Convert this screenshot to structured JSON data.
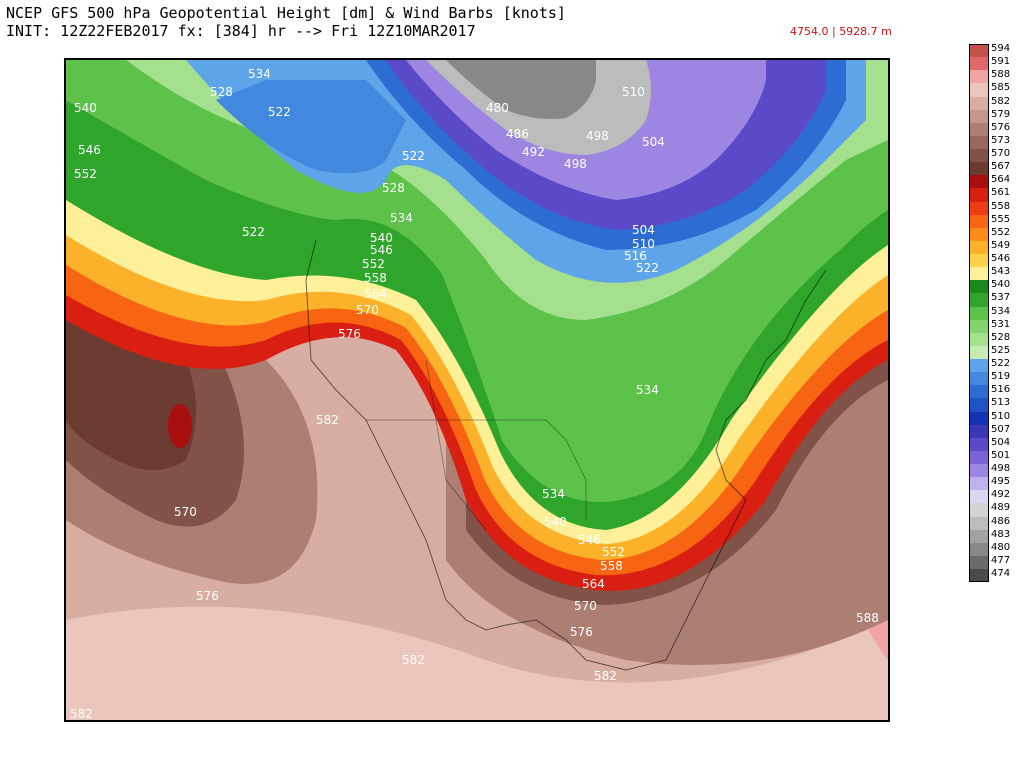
{
  "header": {
    "line1": "NCEP GFS 500 hPa Geopotential Height [dm] & Wind Barbs [knots]",
    "line2": "INIT: 12Z22FEB2017 fx: [384] hr --> Fri 12Z10MAR2017",
    "range": "4754.0 | 5928.7 m"
  },
  "colorbar": [
    {
      "label": "594",
      "color": "#c4504c"
    },
    {
      "label": "591",
      "color": "#e0686a"
    },
    {
      "label": "588",
      "color": "#f1a4a6"
    },
    {
      "label": "585",
      "color": "#ebc6bd"
    },
    {
      "label": "582",
      "color": "#d7aea1"
    },
    {
      "label": "579",
      "color": "#c4978a"
    },
    {
      "label": "576",
      "color": "#ad7f72"
    },
    {
      "label": "573",
      "color": "#98685c"
    },
    {
      "label": "570",
      "color": "#815247"
    },
    {
      "label": "567",
      "color": "#6b3a31"
    },
    {
      "label": "564",
      "color": "#a80e0e"
    },
    {
      "label": "561",
      "color": "#d81f12"
    },
    {
      "label": "558",
      "color": "#f03c12"
    },
    {
      "label": "555",
      "color": "#f76412"
    },
    {
      "label": "552",
      "color": "#fb8c18"
    },
    {
      "label": "549",
      "color": "#fcb12a"
    },
    {
      "label": "546",
      "color": "#fdd24a"
    },
    {
      "label": "543",
      "color": "#fdf099"
    },
    {
      "label": "540",
      "color": "#168a1c"
    },
    {
      "label": "537",
      "color": "#2fa62b"
    },
    {
      "label": "534",
      "color": "#5cc24a"
    },
    {
      "label": "531",
      "color": "#82d46c"
    },
    {
      "label": "528",
      "color": "#a4e08e"
    },
    {
      "label": "525",
      "color": "#c6ecb4"
    },
    {
      "label": "522",
      "color": "#5ea4e8"
    },
    {
      "label": "519",
      "color": "#4288de"
    },
    {
      "label": "516",
      "color": "#2d6cd2"
    },
    {
      "label": "513",
      "color": "#1f52c4"
    },
    {
      "label": "510",
      "color": "#1432b2"
    },
    {
      "label": "507",
      "color": "#3a36b8"
    },
    {
      "label": "504",
      "color": "#5b4ac8"
    },
    {
      "label": "501",
      "color": "#7c62d6"
    },
    {
      "label": "498",
      "color": "#9d86e2"
    },
    {
      "label": "495",
      "color": "#c0b0ee"
    },
    {
      "label": "492",
      "color": "#dcd8f4"
    },
    {
      "label": "489",
      "color": "#d4d4d4"
    },
    {
      "label": "486",
      "color": "#bcbcbc"
    },
    {
      "label": "483",
      "color": "#a2a2a2"
    },
    {
      "label": "480",
      "color": "#888888"
    },
    {
      "label": "477",
      "color": "#6a6a6a"
    },
    {
      "label": "474",
      "color": "#4a4a4a"
    }
  ],
  "contour_labels": [
    {
      "text": "534"
    },
    {
      "text": "528"
    },
    {
      "text": "522"
    },
    {
      "text": "540"
    },
    {
      "text": "546"
    },
    {
      "text": "552"
    },
    {
      "text": "522"
    },
    {
      "text": "522"
    },
    {
      "text": "528"
    },
    {
      "text": "534"
    },
    {
      "text": "540"
    },
    {
      "text": "546"
    },
    {
      "text": "552"
    },
    {
      "text": "558"
    },
    {
      "text": "564"
    },
    {
      "text": "570"
    },
    {
      "text": "576"
    },
    {
      "text": "582"
    },
    {
      "text": "480"
    },
    {
      "text": "486"
    },
    {
      "text": "492"
    },
    {
      "text": "498"
    },
    {
      "text": "498"
    },
    {
      "text": "510"
    },
    {
      "text": "504"
    },
    {
      "text": "504"
    },
    {
      "text": "510"
    },
    {
      "text": "516"
    },
    {
      "text": "522"
    },
    {
      "text": "534"
    },
    {
      "text": "534"
    },
    {
      "text": "540"
    },
    {
      "text": "546"
    },
    {
      "text": "552"
    },
    {
      "text": "558"
    },
    {
      "text": "564"
    },
    {
      "text": "570"
    },
    {
      "text": "576"
    },
    {
      "text": "582"
    },
    {
      "text": "582"
    },
    {
      "text": "570"
    },
    {
      "text": "576"
    },
    {
      "text": "588"
    },
    {
      "text": "582"
    }
  ]
}
